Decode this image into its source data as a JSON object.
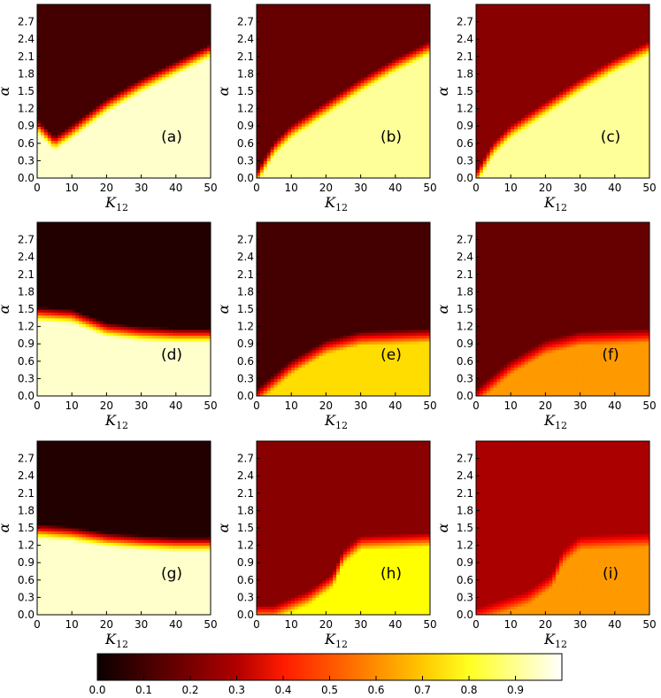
{
  "chart_data": {
    "type": "heatmap",
    "colormap": "hot",
    "colorbar": {
      "ticks": [
        "0.0",
        "0.1",
        "0.2",
        "0.3",
        "0.4",
        "0.5",
        "0.6",
        "0.7",
        "0.8",
        "0.9"
      ],
      "range": [
        0,
        1
      ]
    },
    "xlim": [
      0,
      50
    ],
    "ylim": [
      0,
      3.0
    ],
    "xticks": [
      "0",
      "10",
      "20",
      "30",
      "40",
      "50"
    ],
    "yticks": [
      "0.0",
      "0.3",
      "0.6",
      "0.9",
      "1.2",
      "1.5",
      "1.8",
      "2.1",
      "2.4",
      "2.7"
    ],
    "xlabel": {
      "main": "K",
      "sub": "12"
    },
    "ylabel": "α",
    "panels": [
      {
        "label": "(a)",
        "boundary_alpha_at_K": [
          [
            0,
            0.9
          ],
          [
            5,
            0.6
          ],
          [
            10,
            0.8
          ],
          [
            20,
            1.25
          ],
          [
            30,
            1.6
          ],
          [
            40,
            1.9
          ],
          [
            50,
            2.2
          ]
        ],
        "value_below_boundary": 0.95,
        "value_above_boundary": 0.1
      },
      {
        "label": "(b)",
        "boundary_alpha_at_K": [
          [
            0,
            0.0
          ],
          [
            5,
            0.5
          ],
          [
            10,
            0.8
          ],
          [
            20,
            1.2
          ],
          [
            30,
            1.6
          ],
          [
            40,
            1.95
          ],
          [
            50,
            2.25
          ]
        ],
        "value_below_boundary": 0.9,
        "value_above_boundary": 0.15
      },
      {
        "label": "(c)",
        "boundary_alpha_at_K": [
          [
            0,
            0.0
          ],
          [
            5,
            0.5
          ],
          [
            10,
            0.8
          ],
          [
            20,
            1.2
          ],
          [
            30,
            1.6
          ],
          [
            40,
            1.95
          ],
          [
            50,
            2.25
          ]
        ],
        "value_below_boundary": 0.9,
        "value_above_boundary": 0.2
      },
      {
        "label": "(d)",
        "boundary_alpha_at_K": [
          [
            0,
            1.42
          ],
          [
            10,
            1.38
          ],
          [
            20,
            1.15
          ],
          [
            30,
            1.08
          ],
          [
            40,
            1.05
          ],
          [
            50,
            1.05
          ]
        ],
        "value_below_boundary": 0.95,
        "value_above_boundary": 0.05
      },
      {
        "label": "(e)",
        "boundary_alpha_at_K": [
          [
            0,
            0.0
          ],
          [
            10,
            0.5
          ],
          [
            20,
            0.85
          ],
          [
            30,
            1.0
          ],
          [
            50,
            1.05
          ]
        ],
        "value_below_boundary": 0.7,
        "value_above_boundary": 0.1
      },
      {
        "label": "(f)",
        "boundary_alpha_at_K": [
          [
            0,
            0.0
          ],
          [
            10,
            0.5
          ],
          [
            20,
            0.85
          ],
          [
            30,
            1.0
          ],
          [
            50,
            1.05
          ]
        ],
        "value_below_boundary": 0.6,
        "value_above_boundary": 0.15
      },
      {
        "label": "(g)",
        "boundary_alpha_at_K": [
          [
            0,
            1.45
          ],
          [
            10,
            1.4
          ],
          [
            20,
            1.3
          ],
          [
            30,
            1.25
          ],
          [
            40,
            1.22
          ],
          [
            50,
            1.22
          ]
        ],
        "value_below_boundary": 0.95,
        "value_above_boundary": 0.05
      },
      {
        "label": "(h)",
        "boundary_alpha_at_K": [
          [
            5,
            0.05
          ],
          [
            15,
            0.3
          ],
          [
            22,
            0.6
          ],
          [
            25,
            1.0
          ],
          [
            30,
            1.25
          ],
          [
            50,
            1.3
          ]
        ],
        "value_below_boundary": 0.75,
        "value_above_boundary": 0.2
      },
      {
        "label": "(i)",
        "boundary_alpha_at_K": [
          [
            0,
            0.0
          ],
          [
            15,
            0.3
          ],
          [
            22,
            0.6
          ],
          [
            25,
            1.0
          ],
          [
            30,
            1.25
          ],
          [
            50,
            1.3
          ]
        ],
        "value_below_boundary": 0.6,
        "value_above_boundary": 0.25
      }
    ]
  }
}
